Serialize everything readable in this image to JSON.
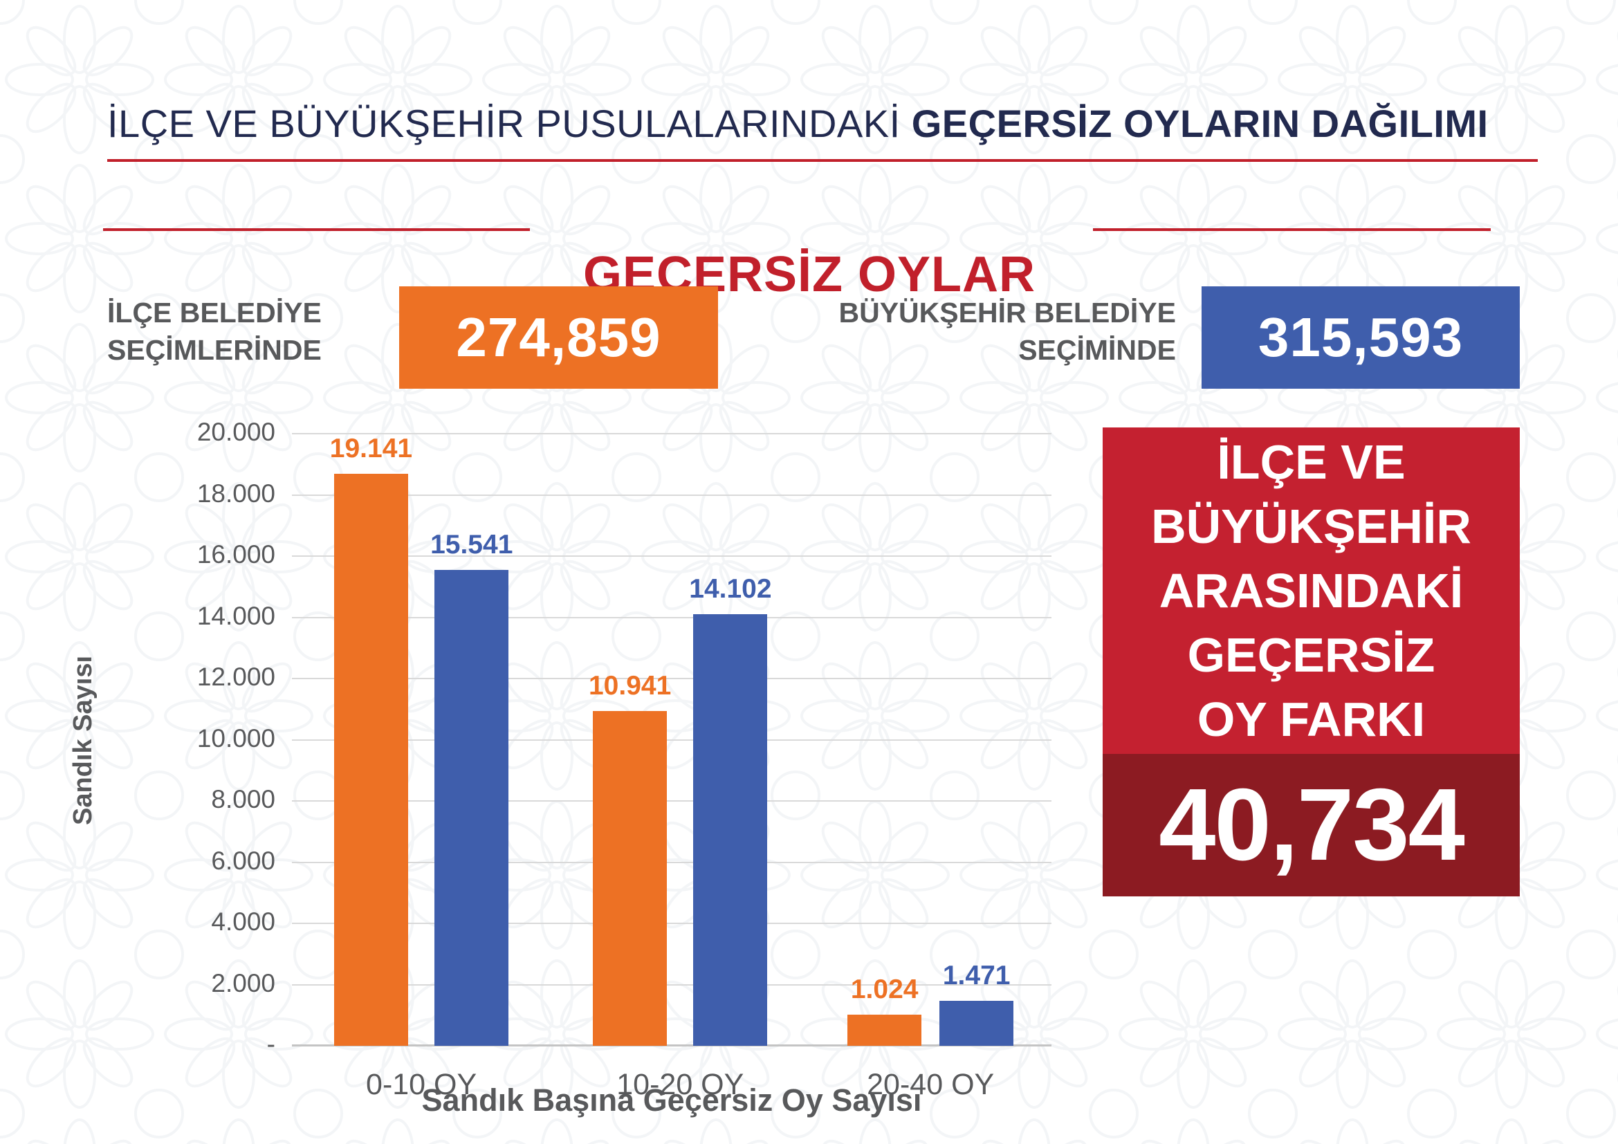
{
  "colors": {
    "navy": "#222a4f",
    "red": "#c1202b",
    "orange": "#ed7124",
    "blue": "#3f5eac",
    "box_red": "#c42130",
    "box_dark_red": "#8c1b22",
    "gray": "#58595b"
  },
  "header": {
    "title_regular": "İLÇE VE BÜYÜKŞEHİR PUSULALARINDAKİ",
    "title_bold": "GEÇERSİZ OYLARIN DAĞILIMI",
    "section_heading": "GEÇERSİZ OYLAR"
  },
  "stats": {
    "district": {
      "label_line1": "İLÇE BELEDİYE",
      "label_line2": "SEÇİMLERİNDE",
      "value": "274,859"
    },
    "metropolitan": {
      "label_line1": "BÜYÜKŞEHİR BELEDİYE",
      "label_line2": "SEÇİMİNDE",
      "value": "315,593"
    }
  },
  "difference_box": {
    "lines": [
      "İLÇE VE",
      "BÜYÜKŞEHİR",
      "ARASINDAKİ",
      "GEÇERSİZ",
      "OY FARKI"
    ],
    "value": "40,734"
  },
  "chart_data": {
    "type": "bar",
    "title": "GEÇERSİZ OYLAR",
    "categories": [
      "0-10 OY",
      "10-20 OY",
      "20-40 OY"
    ],
    "series": [
      {
        "name": "İLÇE BELEDİYE SEÇİMLERİNDE",
        "color_key": "orange",
        "values": [
          19141,
          10941,
          1024
        ],
        "labels": [
          "19.141",
          "10.941",
          "1.024"
        ]
      },
      {
        "name": "BÜYÜKŞEHİR BELEDİYE SEÇİMİNDE",
        "color_key": "blue",
        "values": [
          15541,
          14102,
          1471
        ],
        "labels": [
          "15.541",
          "14.102",
          "1.471"
        ]
      }
    ],
    "xlabel": "Sandık Başına Geçersiz Oy Sayısı",
    "ylabel": "Sandık Sayısı",
    "ylim": [
      0,
      20000
    ],
    "ytick_step": 2000,
    "ytick_labels": [
      "-",
      "2.000",
      "4.000",
      "6.000",
      "8.000",
      "10.000",
      "12.000",
      "14.000",
      "16.000",
      "18.000",
      "20.000"
    ],
    "grid": true,
    "legend": "none"
  }
}
